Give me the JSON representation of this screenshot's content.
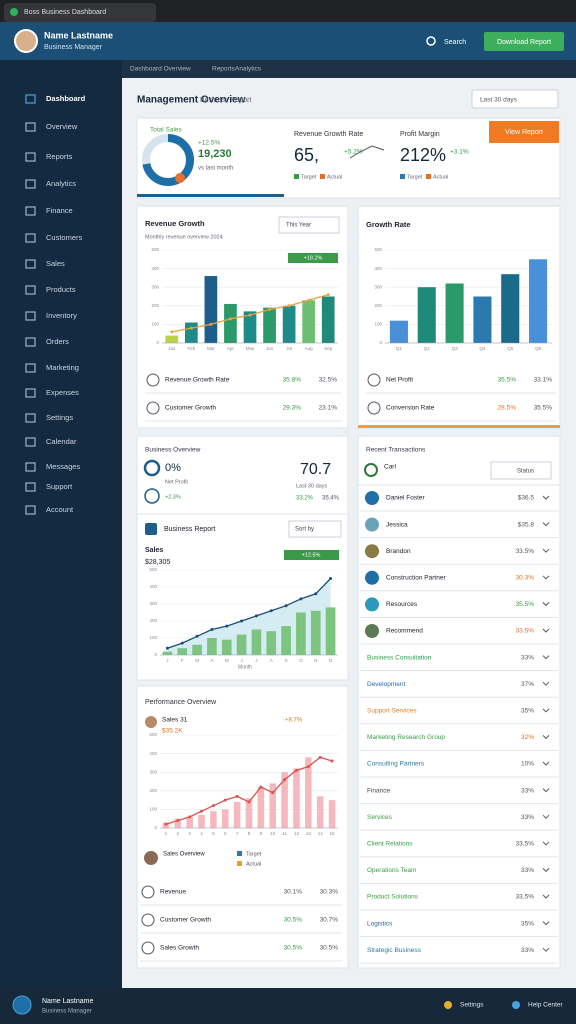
{
  "browser": {
    "tab": "Boss Business Dashboard"
  },
  "header": {
    "name": "Name Lastname",
    "role": "Business Manager",
    "search": "Search",
    "button": "Download Report"
  },
  "sidebar": {
    "items": [
      "Dashboard",
      "Overview",
      "Reports",
      "Analytics",
      "Finance",
      "Customers",
      "Sales",
      "Products",
      "Inventory",
      "Orders",
      "Marketing",
      "Expenses",
      "Settings",
      "Calendar",
      "Messages",
      "Support",
      "Account"
    ]
  },
  "breadcrumb": [
    "Dashboard Overview",
    "Reports",
    "Analytics"
  ],
  "page": {
    "title": "Management Overview",
    "subtitle": "Business Report",
    "filter": "Last 30 days"
  },
  "kpis": [
    {
      "label": "Total Sales",
      "value": "19,230",
      "change": "+12.5%",
      "note": "vs last month",
      "percent": 72
    },
    {
      "label": "Revenue Growth Rate",
      "value": "65,",
      "change": "+5.2%",
      "legend": [
        "Target",
        "Actual"
      ]
    },
    {
      "label": "Profit Margin",
      "value": "212%",
      "change": "+3.1%",
      "legend": [
        "Target",
        "Actual"
      ],
      "button": "View Report"
    }
  ],
  "chart_a": {
    "title": "Revenue Growth",
    "subtitle": "Monthly revenue overview 2024",
    "filter": "This Year",
    "badge": "+18.2%",
    "ylim": [
      0,
      500
    ],
    "yticks": [
      0,
      100,
      200,
      300,
      400,
      500
    ],
    "categories": [
      "Jan",
      "Feb",
      "Mar",
      "Apr",
      "May",
      "Jun",
      "Jul",
      "Aug",
      "Sep"
    ],
    "bars": {
      "colors": [
        "#b9d24a",
        "#1f8a8a",
        "#1d5f8a",
        "#2a9a6a",
        "#1f8a8a",
        "#2a9a6a",
        "#1f8a8a",
        "#6cbf72",
        "#1f8a7a"
      ],
      "values": [
        40,
        110,
        360,
        210,
        170,
        190,
        200,
        230,
        250
      ]
    },
    "lines": [
      {
        "color": "#e8a040",
        "values": [
          60,
          80,
          100,
          130,
          150,
          180,
          200,
          230,
          260
        ]
      }
    ],
    "rows": [
      {
        "label": "Revenue Growth Rate",
        "a": "35.8%",
        "b": "32.5%"
      },
      {
        "label": "Customer Growth",
        "a": "29.3%",
        "b": "23.1%"
      }
    ]
  },
  "chart_b": {
    "title": "Growth Rate",
    "ylim": [
      0,
      500
    ],
    "yticks": [
      0,
      100,
      200,
      300,
      400,
      500
    ],
    "categories": [
      "Q1",
      "Q2",
      "Q3",
      "Q4",
      "Q5",
      "Q6"
    ],
    "bars": {
      "colors": [
        "#4a90d9",
        "#1f8a7a",
        "#2a9a6a",
        "#2a7ab0",
        "#1a6a8a",
        "#4a90d9"
      ],
      "values": [
        120,
        300,
        320,
        250,
        370,
        450
      ]
    },
    "rows": [
      {
        "label": "Net Profit",
        "a": "35.5%",
        "b": "33.1%"
      },
      {
        "label": "Conversion Rate",
        "a": "28.5%",
        "b": "35.5%"
      }
    ]
  },
  "chart_c": {
    "section": "Business Overview",
    "kpi_a": {
      "value": "0%",
      "label": "Net Profit",
      "change": "+2.3%"
    },
    "kpi_b": {
      "value": "70.7",
      "note": "Last 30 days",
      "a": "33.2%",
      "b": "35.4%"
    },
    "subheader": "Business Report",
    "filter": "Sort by",
    "title": "Sales",
    "value": "$28,305",
    "badge": "+12.5%",
    "xlabel": "Month",
    "ylim": [
      0,
      500
    ],
    "yticks": [
      0,
      100,
      200,
      300,
      400,
      500
    ],
    "categories": [
      "J",
      "F",
      "M",
      "A",
      "M",
      "J",
      "J",
      "A",
      "S",
      "O",
      "N",
      "D"
    ],
    "bars": {
      "color": "#7cc47f",
      "values": [
        20,
        40,
        60,
        100,
        90,
        120,
        150,
        140,
        170,
        250,
        260,
        280
      ]
    },
    "lines": [
      {
        "color": "#1d4f7a",
        "fill": "#d6ecf3",
        "values": [
          40,
          70,
          110,
          150,
          170,
          200,
          230,
          260,
          290,
          330,
          360,
          450
        ]
      }
    ]
  },
  "chart_e": {
    "title": "Performance Overview",
    "sub": "Sales 31",
    "value": "$35.2K",
    "badge": "+8.7%",
    "ylim": [
      0,
      500
    ],
    "yticks": [
      0,
      100,
      200,
      300,
      400,
      500
    ],
    "categories": [
      "1",
      "2",
      "3",
      "4",
      "5",
      "6",
      "7",
      "8",
      "9",
      "10",
      "11",
      "12",
      "13",
      "14",
      "15"
    ],
    "bars": {
      "color": "#f4b8bd",
      "values": [
        30,
        50,
        60,
        70,
        90,
        100,
        140,
        160,
        220,
        240,
        300,
        320,
        380,
        170,
        150
      ]
    },
    "lines": [
      {
        "color": "#d9534f",
        "values": [
          20,
          40,
          60,
          90,
          120,
          150,
          170,
          140,
          220,
          190,
          260,
          310,
          330,
          380,
          360
        ]
      }
    ],
    "legend": {
      "label": "Sales Overview",
      "items": [
        "Target",
        "Actual"
      ]
    },
    "rows": [
      {
        "label": "Revenue",
        "a": "30.1%",
        "b": "30.3%"
      },
      {
        "label": "Customer Growth",
        "a": "30.5%",
        "b": "30.7%"
      },
      {
        "label": "Sales Growth",
        "a": "30.5%",
        "b": "30.5%"
      }
    ]
  },
  "list": {
    "title": "Recent Transactions",
    "first": "Carl",
    "filter": "Status",
    "rows": [
      {
        "name": "Daniel Foster",
        "value": "$36.5",
        "avatar": true,
        "color": "#223",
        "value_color": "#556"
      },
      {
        "name": "Jessica",
        "value": "$35.8",
        "avatar": true,
        "color": "#223",
        "value_color": "#556"
      },
      {
        "name": "Brandon",
        "value": "33.5%",
        "avatar": true,
        "color": "#223",
        "value_color": "#556"
      },
      {
        "name": "Construction Partner",
        "value": "30.3%",
        "avatar": true,
        "color": "#223",
        "value_color": "#e0702a"
      },
      {
        "name": "Resources",
        "value": "35.5%",
        "avatar": true,
        "color": "#223",
        "value_color": "#3a9a4a"
      },
      {
        "name": "Recommend",
        "value": "33.5%",
        "avatar": true,
        "color": "#223",
        "value_color": "#e0702a"
      },
      {
        "name": "Business Consultation",
        "value": "33%",
        "avatar": false,
        "color": "#2a9a4a",
        "value_color": "#556"
      },
      {
        "name": "Development",
        "value": "37%",
        "avatar": false,
        "color": "#2a6aa0",
        "value_color": "#556"
      },
      {
        "name": "Support Services",
        "value": "35%",
        "avatar": false,
        "color": "#e0802a",
        "value_color": "#556"
      },
      {
        "name": "Marketing Research Group",
        "value": "32%",
        "avatar": false,
        "color": "#3a9a4a",
        "value_color": "#e0702a"
      },
      {
        "name": "Consulting Partners",
        "value": "10%",
        "avatar": false,
        "color": "#2a7aa0",
        "value_color": "#556"
      },
      {
        "name": "Finance",
        "value": "33%",
        "avatar": false,
        "color": "#445",
        "value_color": "#556"
      },
      {
        "name": "Services",
        "value": "33%",
        "avatar": false,
        "color": "#3a9a4a",
        "value_color": "#556"
      },
      {
        "name": "Client Relations",
        "value": "33.5%",
        "avatar": false,
        "color": "#3a9a4a",
        "value_color": "#556"
      },
      {
        "name": "Operations Team",
        "value": "33%",
        "avatar": false,
        "color": "#3a9a4a",
        "value_color": "#556"
      },
      {
        "name": "Product Solutions",
        "value": "33.5%",
        "avatar": false,
        "color": "#3a9a4a",
        "value_color": "#556"
      },
      {
        "name": "Logistics",
        "value": "35%",
        "avatar": false,
        "color": "#2a6aa0",
        "value_color": "#556"
      },
      {
        "name": "Strategic Business",
        "value": "33%",
        "avatar": false,
        "color": "#2a7aa0",
        "value_color": "#556"
      }
    ]
  },
  "footer": {
    "name": "Name Lastname",
    "role": "Business Manager",
    "links": [
      "Settings",
      "Help Center"
    ]
  }
}
